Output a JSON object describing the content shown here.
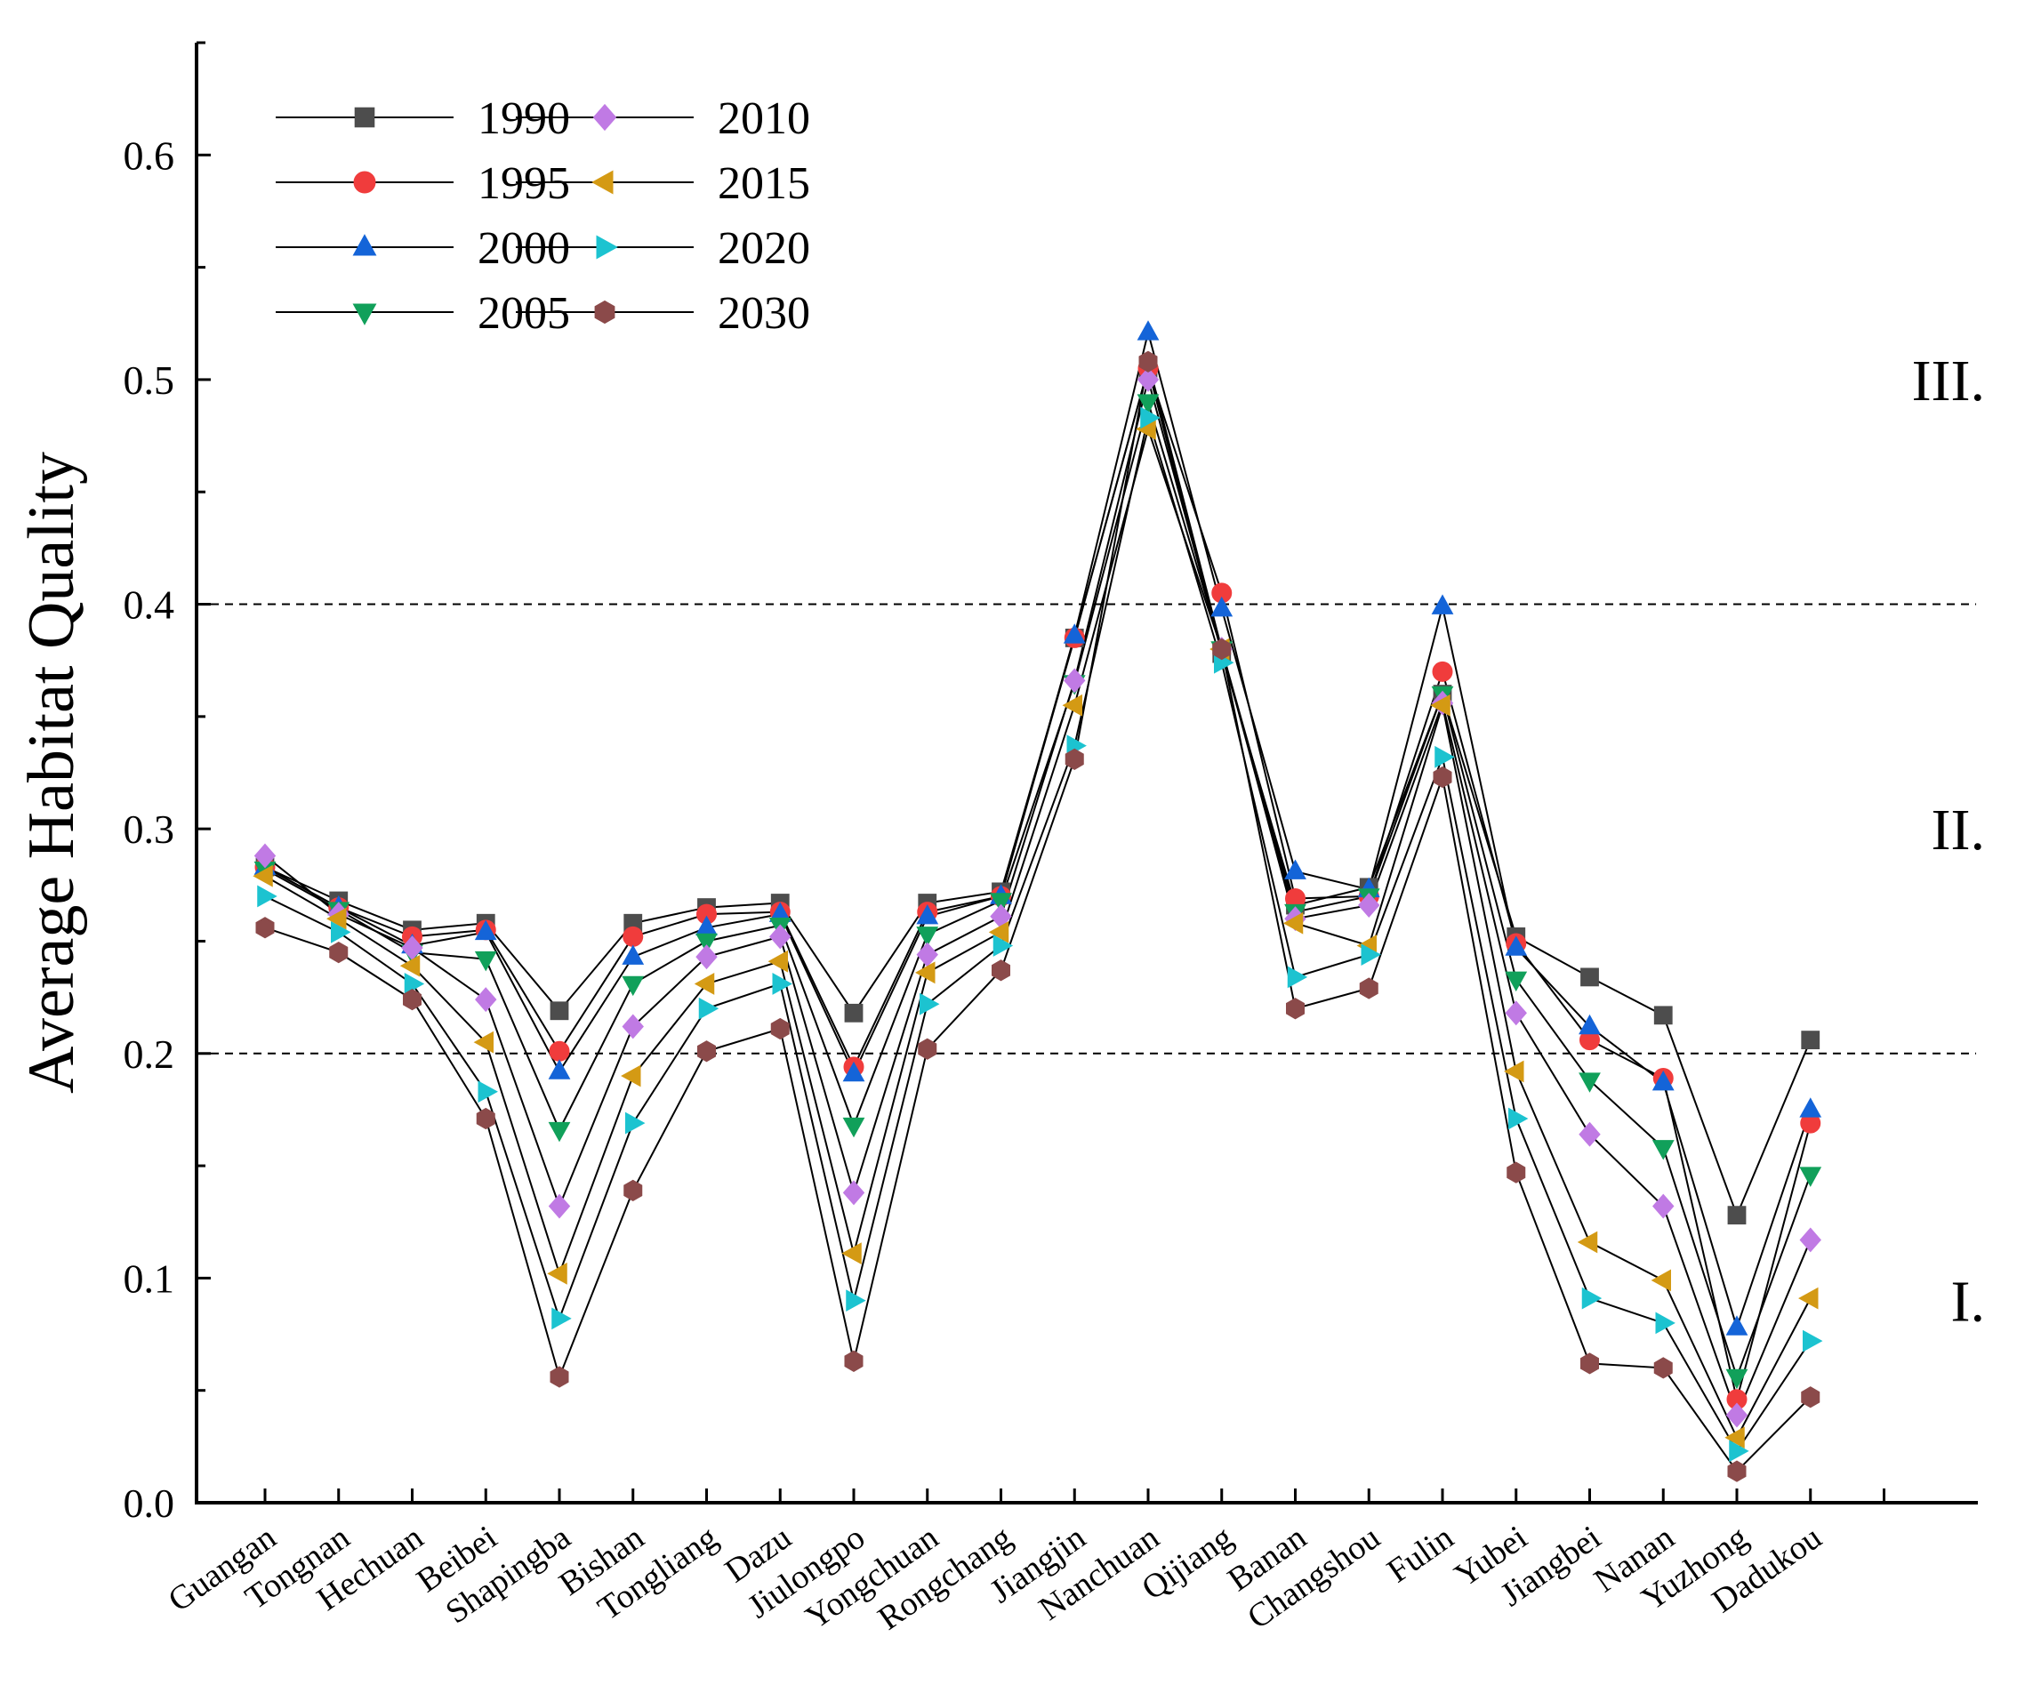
{
  "chart_data": {
    "type": "line",
    "title": "",
    "xlabel": "",
    "ylabel": "Average Habitat Quality",
    "ylim": [
      0,
      0.65
    ],
    "yticks": [
      "0.0",
      "0.1",
      "0.2",
      "0.3",
      "0.4",
      "0.5",
      "0.6"
    ],
    "ytick_values": [
      0,
      0.1,
      0.2,
      0.3,
      0.4,
      0.5,
      0.6
    ],
    "thresholds": [
      0.2,
      0.4
    ],
    "zones": [
      "I.",
      "II.",
      "III."
    ],
    "zone_values": [
      0.09,
      0.3,
      0.5
    ],
    "legend_position": "top-left",
    "categories": [
      "Guangan",
      "Tongnan",
      "Hechuan",
      "Beibei",
      "Shapingba",
      "Bishan",
      "Tongliang",
      "Dazu",
      "Jiulongpo",
      "Yongchuan",
      "Rongchang",
      "Jiangjin",
      "Nanchuan",
      "Qijiang",
      "Banan",
      "Changshou",
      "Fulin",
      "Yubei",
      "Jiangbei",
      "Nanan",
      "Yuzhong",
      "Dadukou"
    ],
    "series": [
      {
        "name": "1990",
        "color": "#4d4d4d",
        "marker": "square",
        "values": [
          0.283,
          0.268,
          0.255,
          0.258,
          0.219,
          0.258,
          0.265,
          0.267,
          0.218,
          0.267,
          0.272,
          0.385,
          0.505,
          0.378,
          0.266,
          0.274,
          0.36,
          0.252,
          0.234,
          0.217,
          0.128,
          0.206
        ]
      },
      {
        "name": "1995",
        "color": "#f03c3c",
        "marker": "circle",
        "values": [
          0.283,
          0.265,
          0.252,
          0.255,
          0.201,
          0.252,
          0.262,
          0.263,
          0.194,
          0.263,
          0.27,
          0.385,
          0.505,
          0.405,
          0.269,
          0.27,
          0.37,
          0.249,
          0.206,
          0.189,
          0.046,
          0.169
        ]
      },
      {
        "name": "2000",
        "color": "#1464d8",
        "marker": "triangle-up",
        "values": [
          0.283,
          0.265,
          0.248,
          0.254,
          0.192,
          0.243,
          0.256,
          0.262,
          0.191,
          0.261,
          0.27,
          0.386,
          0.521,
          0.398,
          0.281,
          0.273,
          0.399,
          0.247,
          0.212,
          0.187,
          0.078,
          0.175
        ]
      },
      {
        "name": "2005",
        "color": "#11a05a",
        "marker": "triangle-down",
        "values": [
          0.282,
          0.264,
          0.245,
          0.242,
          0.166,
          0.231,
          0.25,
          0.257,
          0.168,
          0.253,
          0.268,
          0.365,
          0.49,
          0.38,
          0.263,
          0.27,
          0.36,
          0.233,
          0.188,
          0.158,
          0.056,
          0.146
        ]
      },
      {
        "name": "2010",
        "color": "#c07ae4",
        "marker": "diamond",
        "values": [
          0.288,
          0.262,
          0.247,
          0.224,
          0.132,
          0.212,
          0.243,
          0.252,
          0.138,
          0.244,
          0.261,
          0.366,
          0.5,
          0.38,
          0.26,
          0.266,
          0.356,
          0.218,
          0.164,
          0.132,
          0.039,
          0.117
        ]
      },
      {
        "name": "2015",
        "color": "#d49a14",
        "marker": "triangle-left",
        "values": [
          0.279,
          0.26,
          0.239,
          0.205,
          0.102,
          0.19,
          0.231,
          0.241,
          0.111,
          0.236,
          0.254,
          0.355,
          0.478,
          0.38,
          0.258,
          0.248,
          0.355,
          0.192,
          0.116,
          0.099,
          0.029,
          0.091
        ]
      },
      {
        "name": "2020",
        "color": "#1cc3d0",
        "marker": "triangle-right",
        "values": [
          0.27,
          0.254,
          0.231,
          0.183,
          0.082,
          0.169,
          0.22,
          0.231,
          0.09,
          0.222,
          0.248,
          0.337,
          0.483,
          0.374,
          0.234,
          0.244,
          0.332,
          0.171,
          0.091,
          0.08,
          0.023,
          0.072
        ]
      },
      {
        "name": "2030",
        "color": "#8b4a4a",
        "marker": "hexagon",
        "values": [
          0.256,
          0.245,
          0.224,
          0.171,
          0.056,
          0.139,
          0.201,
          0.211,
          0.063,
          0.202,
          0.237,
          0.331,
          0.508,
          0.38,
          0.22,
          0.229,
          0.323,
          0.147,
          0.062,
          0.06,
          0.014,
          0.047
        ]
      }
    ]
  }
}
